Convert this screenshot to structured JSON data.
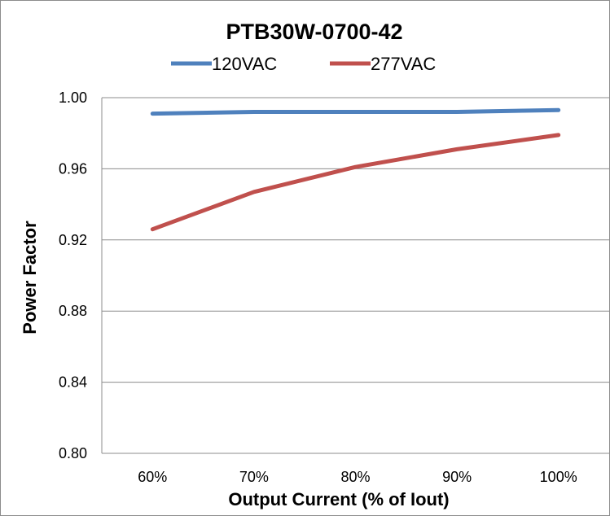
{
  "chart_data": {
    "type": "line",
    "title": "PTB30W-0700-42",
    "xlabel": "Output Current (% of Iout)",
    "ylabel": "Power Factor",
    "categories": [
      "60%",
      "70%",
      "80%",
      "90%",
      "100%"
    ],
    "ylim": [
      0.8,
      1.0
    ],
    "yticks": [
      0.8,
      0.84,
      0.88,
      0.92,
      0.96,
      1.0
    ],
    "ytick_labels": [
      "0.80",
      "0.84",
      "0.88",
      "0.92",
      "0.96",
      "1.00"
    ],
    "grid": "horizontal",
    "legend_position": "top",
    "series": [
      {
        "name": "120VAC",
        "color": "#4f81bd",
        "values": [
          0.991,
          0.992,
          0.992,
          0.992,
          0.993
        ]
      },
      {
        "name": "277VAC",
        "color": "#c0504d",
        "values": [
          0.926,
          0.947,
          0.961,
          0.971,
          0.979
        ]
      }
    ]
  }
}
